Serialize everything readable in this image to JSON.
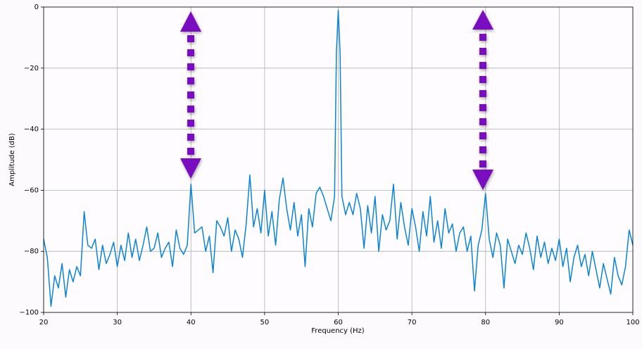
{
  "chart_data": {
    "type": "line",
    "xlabel": "Frequency (Hz)",
    "ylabel": "Amplitude (dB)",
    "xlim": [
      20,
      100
    ],
    "ylim": [
      -100,
      0
    ],
    "xticks": [
      20,
      30,
      40,
      50,
      60,
      70,
      80,
      90,
      100
    ],
    "yticks": [
      {
        "value": -100,
        "label": "−100"
      },
      {
        "value": -80,
        "label": "−80"
      },
      {
        "value": -60,
        "label": "−60"
      },
      {
        "value": -40,
        "label": "−40"
      },
      {
        "value": -20,
        "label": "−20"
      },
      0
    ],
    "grid": true,
    "series": [
      {
        "color": "#0a84d8",
        "x": [
          20,
          20.5,
          21,
          21.5,
          22,
          22.5,
          23,
          23.5,
          24,
          24.5,
          25,
          25.5,
          26,
          26.5,
          27,
          27.5,
          28,
          28.5,
          29,
          29.5,
          30,
          30.5,
          31,
          31.5,
          32,
          32.5,
          33,
          33.5,
          34,
          34.5,
          35,
          35.5,
          36,
          36.5,
          37,
          37.5,
          38,
          38.5,
          39,
          39.5,
          40,
          40.5,
          41,
          41.5,
          42,
          42.5,
          43,
          43.5,
          44,
          44.5,
          45,
          45.5,
          46,
          46.5,
          47,
          47.5,
          48,
          48.5,
          49,
          49.5,
          50,
          50.5,
          51,
          51.5,
          52,
          52.5,
          53,
          53.5,
          54,
          54.5,
          55,
          55.5,
          56,
          56.5,
          57,
          57.5,
          58,
          58.5,
          59,
          59.5,
          59.75,
          60,
          60.25,
          60.5,
          61,
          61.5,
          62,
          62.5,
          63,
          63.5,
          64,
          64.5,
          65,
          65.5,
          66,
          66.5,
          67,
          67.5,
          68,
          68.5,
          69,
          69.5,
          70,
          70.5,
          71,
          71.5,
          72,
          72.5,
          73,
          73.5,
          74,
          74.5,
          75,
          75.5,
          76,
          76.5,
          77,
          77.5,
          78,
          78.5,
          79,
          79.5,
          80,
          80.5,
          81,
          81.5,
          82,
          82.5,
          83,
          83.5,
          84,
          84.5,
          85,
          85.5,
          86,
          86.5,
          87,
          87.5,
          88,
          88.5,
          89,
          89.5,
          90,
          90.5,
          91,
          91.5,
          92,
          92.5,
          93,
          93.5,
          94,
          94.5,
          95,
          95.5,
          96,
          96.5,
          97,
          97.5,
          98,
          98.5,
          99,
          99.5,
          100
        ],
        "values": [
          -76,
          -82,
          -98,
          -88,
          -92,
          -84,
          -95,
          -86,
          -90,
          -85,
          -88,
          -67,
          -78,
          -79,
          -76,
          -86,
          -78,
          -84,
          -81,
          -77,
          -85,
          -78,
          -83,
          -74,
          -82,
          -76,
          -83,
          -78,
          -72,
          -80,
          -79,
          -74,
          -82,
          -79,
          -77,
          -85,
          -73,
          -79,
          -81,
          -78,
          -58,
          -74,
          -73,
          -72,
          -80,
          -75,
          -87,
          -70,
          -72,
          -75,
          -69,
          -80,
          -73,
          -76,
          -82,
          -71,
          -55,
          -72,
          -66,
          -74,
          -60,
          -75,
          -67,
          -78,
          -63,
          -56,
          -66,
          -73,
          -64,
          -75,
          -68,
          -85,
          -66,
          -72,
          -61,
          -59,
          -62,
          -66,
          -70,
          -62,
          -15,
          -1,
          -15,
          -62,
          -68,
          -64,
          -68,
          -61,
          -66,
          -79,
          -65,
          -74,
          -62,
          -80,
          -68,
          -73,
          -70,
          -58,
          -76,
          -64,
          -72,
          -78,
          -66,
          -72,
          -80,
          -67,
          -75,
          -62,
          -77,
          -70,
          -79,
          -66,
          -74,
          -71,
          -80,
          -74,
          -72,
          -80,
          -75,
          -93,
          -78,
          -73,
          -61,
          -76,
          -82,
          -74,
          -78,
          -92,
          -76,
          -80,
          -84,
          -78,
          -81,
          -74,
          -79,
          -86,
          -75,
          -82,
          -77,
          -84,
          -79,
          -83,
          -76,
          -85,
          -79,
          -90,
          -82,
          -78,
          -85,
          -81,
          -88,
          -80,
          -86,
          -92,
          -84,
          -89,
          -94,
          -82,
          -88,
          -91,
          -85,
          -73,
          -78
        ]
      }
    ]
  }
}
